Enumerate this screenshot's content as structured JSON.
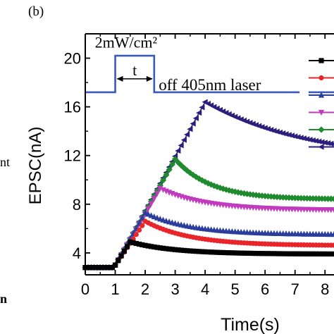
{
  "panel_label": "(b)",
  "left_cut_text": [
    "nt",
    "n"
  ],
  "chart_data": {
    "type": "line",
    "xlabel": "Time(s)",
    "ylabel": "EPSC(nA)",
    "xlim": [
      0,
      8.3
    ],
    "ylim": [
      2.2,
      22
    ],
    "x_ticks": [
      0,
      1,
      2,
      3,
      4,
      5,
      6,
      7,
      8
    ],
    "y_ticks": [
      4,
      8,
      12,
      16,
      20
    ],
    "grid": false,
    "legend": "right (cut off)",
    "inset": {
      "label_top": "2mW/cm²",
      "label_t": "t",
      "label_off": "off 405nm laser",
      "color": "#3a5bb8",
      "baseline_y": 17.2,
      "high_y": 20.2,
      "x_on": 1.0,
      "x_off": 2.3
    },
    "series": [
      {
        "color": "#000000",
        "marker": "square",
        "rise_end_x": 1.5,
        "peak": 4.9,
        "final": 3.9,
        "decay_tau": 1.5
      },
      {
        "color": "#e8252a",
        "marker": "circle",
        "rise_end_x": 2.0,
        "peak": 6.6,
        "final": 4.6,
        "decay_tau": 1.5
      },
      {
        "color": "#2b3d9c",
        "marker": "triangle-up",
        "rise_end_x": 2.0,
        "peak": 7.3,
        "final": 5.5,
        "decay_tau": 1.5
      },
      {
        "color": "#c03bbd",
        "marker": "triangle-down",
        "rise_end_x": 2.5,
        "peak": 9.3,
        "final": 7.5,
        "decay_tau": 1.5
      },
      {
        "color": "#1f8a2e",
        "marker": "diamond",
        "rise_end_x": 3.0,
        "peak": 11.7,
        "final": 8.4,
        "decay_tau": 1.2
      },
      {
        "color": "#2c1f7c",
        "marker": "triangle-left",
        "rise_end_x": 4.0,
        "peak": 16.4,
        "final": 11.5,
        "decay_tau": 3.5
      }
    ],
    "baseline": 2.8,
    "rise_start_x": 0.95
  },
  "colors": {
    "axis": "#000000",
    "text": "#000000"
  }
}
